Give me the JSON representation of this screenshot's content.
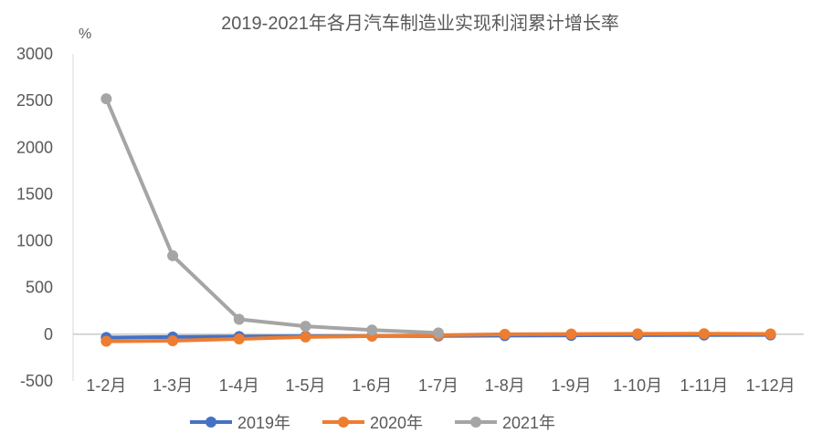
{
  "chart_data": {
    "type": "line",
    "title": "2019-2021年各月汽车制造业实现利润累计增长率",
    "ylabel": "%",
    "ylim": [
      -500,
      3000
    ],
    "yticks": [
      -500,
      0,
      500,
      1000,
      1500,
      2000,
      2500,
      3000
    ],
    "categories": [
      "1-2月",
      "1-3月",
      "1-4月",
      "1-5月",
      "1-6月",
      "1-7月",
      "1-8月",
      "1-9月",
      "1-10月",
      "1-11月",
      "1-12月"
    ],
    "series": [
      {
        "name": "2019年",
        "color": "#4472C4",
        "values": [
          -35,
          -30,
          -25,
          -22,
          -20,
          -18,
          -15,
          -12,
          -10,
          -9,
          -8
        ]
      },
      {
        "name": "2020年",
        "color": "#ED7D31",
        "values": [
          -75,
          -70,
          -50,
          -30,
          -20,
          -10,
          0,
          2,
          5,
          6,
          3
        ]
      },
      {
        "name": "2021年",
        "color": "#A5A5A5",
        "values": [
          2520,
          840,
          160,
          85,
          45,
          15,
          null,
          null,
          null,
          null,
          null
        ]
      }
    ],
    "grid": false,
    "legend": "bottom"
  }
}
